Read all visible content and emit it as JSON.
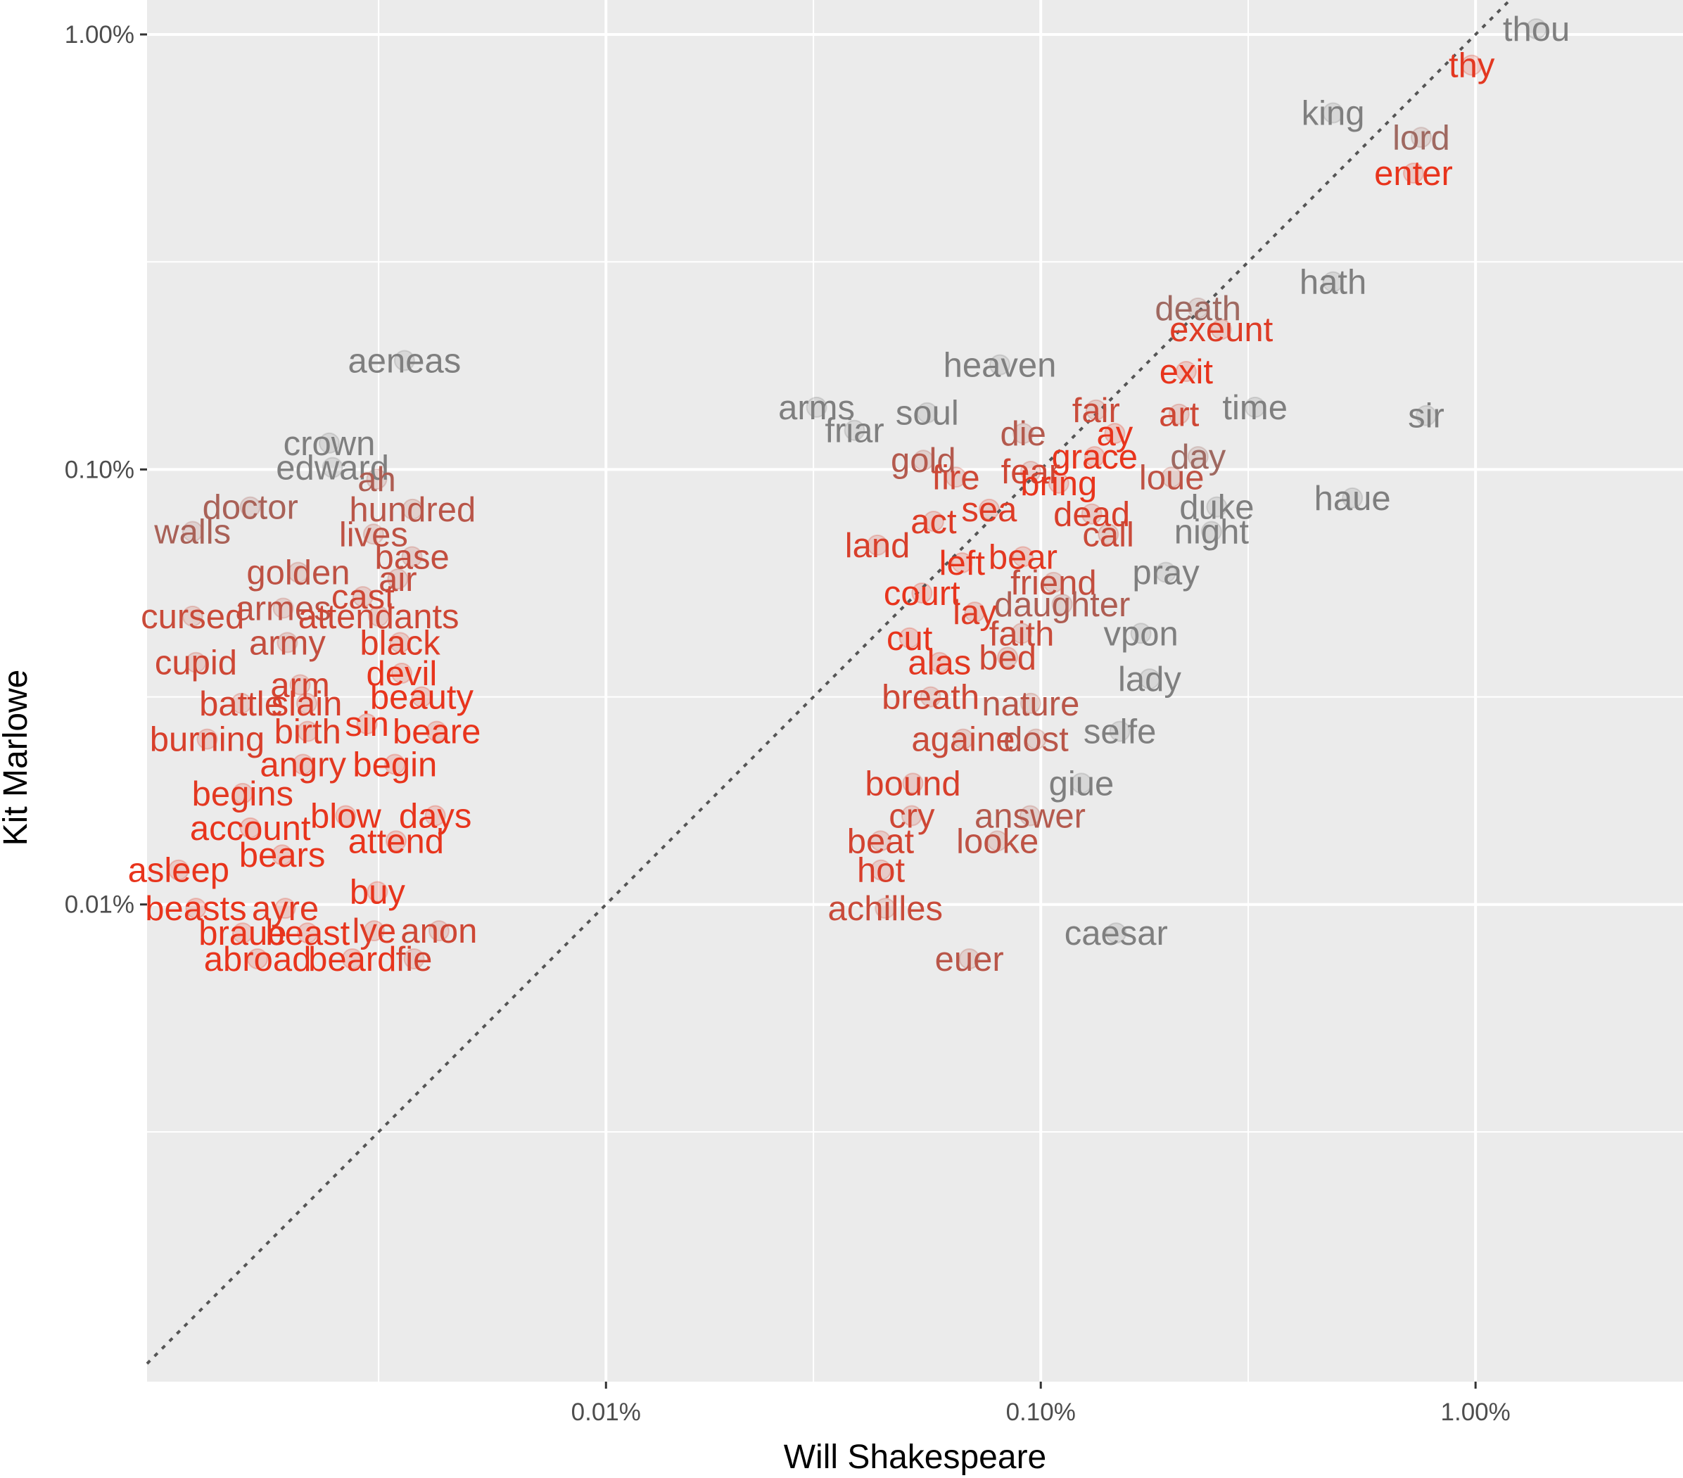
{
  "chart_data": {
    "type": "scatter",
    "title": "",
    "xlabel": "Will Shakespeare",
    "ylabel": "Kit Marlowe",
    "x_scale": "log10",
    "y_scale": "log10",
    "xlim": [
      8.8e-06,
      0.03
    ],
    "ylim": [
      8e-06,
      0.012
    ],
    "x_ticks": [
      {
        "value": 0.0001,
        "label": "0.01%"
      },
      {
        "value": 0.001,
        "label": "0.10%"
      },
      {
        "value": 0.01,
        "label": "1.00%"
      }
    ],
    "y_ticks": [
      {
        "value": 0.0001,
        "label": "0.01%"
      },
      {
        "value": 0.001,
        "label": "0.10%"
      },
      {
        "value": 0.01,
        "label": "1.00%"
      }
    ],
    "reference_line": {
      "style": "dotted",
      "description": "y = x",
      "color": "#555555"
    },
    "grid": true,
    "legend": "none",
    "colors": {
      "low": "#7f7f7f",
      "high": "#e8341c",
      "panel": "#ebebeb",
      "grid": "#ffffff"
    },
    "labeled_words": [
      {
        "word": "thou",
        "x": 0.0138,
        "y": 0.0103,
        "d": 0.0
      },
      {
        "word": "thy",
        "x": 0.0098,
        "y": 0.0085,
        "d": 0.95
      },
      {
        "word": "king",
        "x": 0.0047,
        "y": 0.0066,
        "d": 0.0
      },
      {
        "word": "lord",
        "x": 0.0075,
        "y": 0.0058,
        "d": 0.3
      },
      {
        "word": "enter",
        "x": 0.0072,
        "y": 0.0048,
        "d": 1.0
      },
      {
        "word": "hath",
        "x": 0.0047,
        "y": 0.0027,
        "d": 0.0
      },
      {
        "word": "death",
        "x": 0.0023,
        "y": 0.00235,
        "d": 0.3
      },
      {
        "word": "exeunt",
        "x": 0.0026,
        "y": 0.0021,
        "d": 0.9
      },
      {
        "word": "aeneas",
        "x": 3.44e-05,
        "y": 0.00178,
        "d": 0.0
      },
      {
        "word": "heaven",
        "x": 0.000805,
        "y": 0.00174,
        "d": 0.0
      },
      {
        "word": "exit",
        "x": 0.00216,
        "y": 0.00168,
        "d": 1.0
      },
      {
        "word": "time",
        "x": 0.00311,
        "y": 0.00139,
        "d": 0.0
      },
      {
        "word": "sir",
        "x": 0.0077,
        "y": 0.00133,
        "d": 0.0
      },
      {
        "word": "fair",
        "x": 0.00134,
        "y": 0.00137,
        "d": 0.7
      },
      {
        "word": "art",
        "x": 0.00208,
        "y": 0.00134,
        "d": 0.75
      },
      {
        "word": "arms",
        "x": 0.000305,
        "y": 0.00139,
        "d": 0.0
      },
      {
        "word": "soul",
        "x": 0.000548,
        "y": 0.00135,
        "d": 0.0
      },
      {
        "word": "friar",
        "x": 0.000373,
        "y": 0.00123,
        "d": 0.0
      },
      {
        "word": "ay",
        "x": 0.00148,
        "y": 0.00121,
        "d": 1.0
      },
      {
        "word": "die",
        "x": 0.000911,
        "y": 0.00121,
        "d": 0.5
      },
      {
        "word": "crown",
        "x": 2.31e-05,
        "y": 0.00115,
        "d": 0.0
      },
      {
        "word": "grace",
        "x": 0.00133,
        "y": 0.00107,
        "d": 1.0
      },
      {
        "word": "day",
        "x": 0.0023,
        "y": 0.00107,
        "d": 0.3
      },
      {
        "word": "gold",
        "x": 0.000537,
        "y": 0.00105,
        "d": 0.5
      },
      {
        "word": "edward",
        "x": 2.35e-05,
        "y": 0.00101,
        "d": 0.0
      },
      {
        "word": "fear",
        "x": 0.000948,
        "y": 0.00099,
        "d": 0.75
      },
      {
        "word": "fire",
        "x": 0.000638,
        "y": 0.00096,
        "d": 0.75
      },
      {
        "word": "loue",
        "x": 0.002,
        "y": 0.00096,
        "d": 0.6
      },
      {
        "word": "ah",
        "x": 2.97e-05,
        "y": 0.00095,
        "d": 0.45
      },
      {
        "word": "bring",
        "x": 0.0011,
        "y": 0.00093,
        "d": 1.0
      },
      {
        "word": "haue",
        "x": 0.00521,
        "y": 0.00086,
        "d": 0.0
      },
      {
        "word": "doctor",
        "x": 1.52e-05,
        "y": 0.00082,
        "d": 0.4
      },
      {
        "word": "hundred",
        "x": 3.59e-05,
        "y": 0.00081,
        "d": 0.55
      },
      {
        "word": "sea",
        "x": 0.000761,
        "y": 0.00081,
        "d": 0.9
      },
      {
        "word": "duke",
        "x": 0.00254,
        "y": 0.00082,
        "d": 0.0
      },
      {
        "word": "dead",
        "x": 0.00131,
        "y": 0.00079,
        "d": 0.85
      },
      {
        "word": "act",
        "x": 0.000567,
        "y": 0.00076,
        "d": 0.9
      },
      {
        "word": "walls",
        "x": 1.12e-05,
        "y": 0.00072,
        "d": 0.4
      },
      {
        "word": "night",
        "x": 0.00247,
        "y": 0.00072,
        "d": 0.0
      },
      {
        "word": "call",
        "x": 0.00143,
        "y": 0.00071,
        "d": 0.7
      },
      {
        "word": "lives",
        "x": 2.92e-05,
        "y": 0.00071,
        "d": 0.6
      },
      {
        "word": "land",
        "x": 0.000421,
        "y": 0.00067,
        "d": 0.85
      },
      {
        "word": "base",
        "x": 3.58e-05,
        "y": 0.00063,
        "d": 0.65
      },
      {
        "word": "bear",
        "x": 0.00091,
        "y": 0.00063,
        "d": 0.95
      },
      {
        "word": "left",
        "x": 0.000659,
        "y": 0.00061,
        "d": 1.0
      },
      {
        "word": "pray",
        "x": 0.00194,
        "y": 0.00058,
        "d": 0.0
      },
      {
        "word": "golden",
        "x": 1.96e-05,
        "y": 0.00058,
        "d": 0.6
      },
      {
        "word": "air",
        "x": 3.32e-05,
        "y": 0.00056,
        "d": 0.65
      },
      {
        "word": "friend",
        "x": 0.00107,
        "y": 0.00055,
        "d": 0.65
      },
      {
        "word": "court",
        "x": 0.000533,
        "y": 0.00052,
        "d": 1.0
      },
      {
        "word": "cast",
        "x": 2.76e-05,
        "y": 0.00051,
        "d": 0.75
      },
      {
        "word": "daughter",
        "x": 0.00112,
        "y": 0.00049,
        "d": 0.45
      },
      {
        "word": "armes",
        "x": 1.81e-05,
        "y": 0.00048,
        "d": 0.6
      },
      {
        "word": "lay",
        "x": 0.000705,
        "y": 0.00047,
        "d": 0.9
      },
      {
        "word": "cursed",
        "x": 1.12e-05,
        "y": 0.00046,
        "d": 0.7
      },
      {
        "word": "attendants",
        "x": 3e-05,
        "y": 0.00046,
        "d": 0.75
      },
      {
        "word": "vpon",
        "x": 0.0017,
        "y": 0.00042,
        "d": 0.0
      },
      {
        "word": "faith",
        "x": 0.000904,
        "y": 0.00042,
        "d": 0.7
      },
      {
        "word": "cut",
        "x": 0.000499,
        "y": 0.00041,
        "d": 1.0
      },
      {
        "word": "army",
        "x": 1.85e-05,
        "y": 0.0004,
        "d": 0.65
      },
      {
        "word": "black",
        "x": 3.36e-05,
        "y": 0.0004,
        "d": 0.9
      },
      {
        "word": "bed",
        "x": 0.000839,
        "y": 0.00037,
        "d": 0.75
      },
      {
        "word": "alas",
        "x": 0.000585,
        "y": 0.00036,
        "d": 0.95
      },
      {
        "word": "cupid",
        "x": 1.14e-05,
        "y": 0.00036,
        "d": 0.75
      },
      {
        "word": "devil",
        "x": 3.39e-05,
        "y": 0.00034,
        "d": 1.0
      },
      {
        "word": "lady",
        "x": 0.00178,
        "y": 0.00033,
        "d": 0.0
      },
      {
        "word": "arm",
        "x": 1.98e-05,
        "y": 0.00032,
        "d": 0.8
      },
      {
        "word": "beauty",
        "x": 3.77e-05,
        "y": 0.0003,
        "d": 1.0
      },
      {
        "word": "breath",
        "x": 0.000558,
        "y": 0.0003,
        "d": 0.75
      },
      {
        "word": "battle",
        "x": 1.45e-05,
        "y": 0.00029,
        "d": 0.8
      },
      {
        "word": "slain",
        "x": 2.05e-05,
        "y": 0.00029,
        "d": 0.85
      },
      {
        "word": "nature",
        "x": 0.000948,
        "y": 0.00029,
        "d": 0.55
      },
      {
        "word": "sin",
        "x": 2.82e-05,
        "y": 0.00026,
        "d": 1.0
      },
      {
        "word": "birth",
        "x": 2.06e-05,
        "y": 0.00025,
        "d": 0.9
      },
      {
        "word": "beare",
        "x": 4.08e-05,
        "y": 0.00025,
        "d": 1.0
      },
      {
        "word": "selfe",
        "x": 0.00152,
        "y": 0.00025,
        "d": 0.0
      },
      {
        "word": "burning",
        "x": 1.21e-05,
        "y": 0.00024,
        "d": 0.85
      },
      {
        "word": "againe",
        "x": 0.000663,
        "y": 0.00024,
        "d": 0.7
      },
      {
        "word": "dost",
        "x": 0.000975,
        "y": 0.00024,
        "d": 0.55
      },
      {
        "word": "angry",
        "x": 2.01e-05,
        "y": 0.00021,
        "d": 0.95
      },
      {
        "word": "begin",
        "x": 3.27e-05,
        "y": 0.00021,
        "d": 1.0
      },
      {
        "word": "bound",
        "x": 0.000508,
        "y": 0.00019,
        "d": 0.85
      },
      {
        "word": "giue",
        "x": 0.00124,
        "y": 0.00019,
        "d": 0.0
      },
      {
        "word": "begins",
        "x": 1.46e-05,
        "y": 0.00018,
        "d": 0.95
      },
      {
        "word": "blow",
        "x": 2.52e-05,
        "y": 0.00016,
        "d": 1.0
      },
      {
        "word": "days",
        "x": 4.05e-05,
        "y": 0.00016,
        "d": 1.0
      },
      {
        "word": "cry",
        "x": 0.000505,
        "y": 0.00016,
        "d": 0.75
      },
      {
        "word": "answer",
        "x": 0.000945,
        "y": 0.00016,
        "d": 0.5
      },
      {
        "word": "account",
        "x": 1.52e-05,
        "y": 0.00015,
        "d": 1.0
      },
      {
        "word": "attend",
        "x": 3.29e-05,
        "y": 0.00014,
        "d": 1.0
      },
      {
        "word": "beat",
        "x": 0.000428,
        "y": 0.00014,
        "d": 0.8
      },
      {
        "word": "looke",
        "x": 0.000795,
        "y": 0.00014,
        "d": 0.6
      },
      {
        "word": "bears",
        "x": 1.8e-05,
        "y": 0.00013,
        "d": 1.0
      },
      {
        "word": "asleep",
        "x": 1.04e-05,
        "y": 0.00012,
        "d": 1.0
      },
      {
        "word": "hot",
        "x": 0.000429,
        "y": 0.00012,
        "d": 0.85
      },
      {
        "word": "buy",
        "x": 2.98e-05,
        "y": 0.000107,
        "d": 1.0
      },
      {
        "word": "beasts",
        "x": 1.14e-05,
        "y": 9.8e-05,
        "d": 1.0
      },
      {
        "word": "ayre",
        "x": 1.83e-05,
        "y": 9.8e-05,
        "d": 0.95
      },
      {
        "word": "achilles",
        "x": 0.000439,
        "y": 9.8e-05,
        "d": 0.7
      },
      {
        "word": "braue",
        "x": 1.46e-05,
        "y": 8.6e-05,
        "d": 1.0
      },
      {
        "word": "beast",
        "x": 2.06e-05,
        "y": 8.6e-05,
        "d": 1.0
      },
      {
        "word": "lye",
        "x": 2.93e-05,
        "y": 8.7e-05,
        "d": 0.9
      },
      {
        "word": "anon",
        "x": 4.13e-05,
        "y": 8.7e-05,
        "d": 0.75
      },
      {
        "word": "caesar",
        "x": 0.00149,
        "y": 8.6e-05,
        "d": 0.0
      },
      {
        "word": "abroad",
        "x": 1.58e-05,
        "y": 7.5e-05,
        "d": 1.0
      },
      {
        "word": "beard",
        "x": 2.61e-05,
        "y": 7.5e-05,
        "d": 1.0
      },
      {
        "word": "fie",
        "x": 3.62e-05,
        "y": 7.5e-05,
        "d": 0.8
      },
      {
        "word": "euer",
        "x": 0.000685,
        "y": 7.5e-05,
        "d": 0.55
      }
    ]
  }
}
